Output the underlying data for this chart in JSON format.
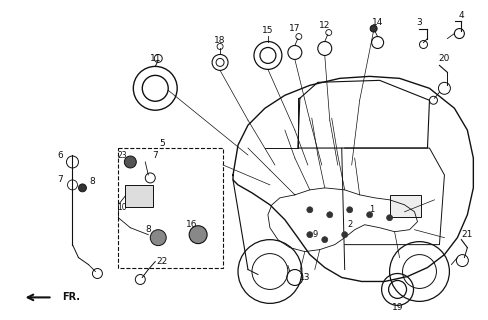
{
  "bg_color": "#ffffff",
  "line_color": "#111111",
  "figsize": [
    4.88,
    3.2
  ],
  "dpi": 100
}
